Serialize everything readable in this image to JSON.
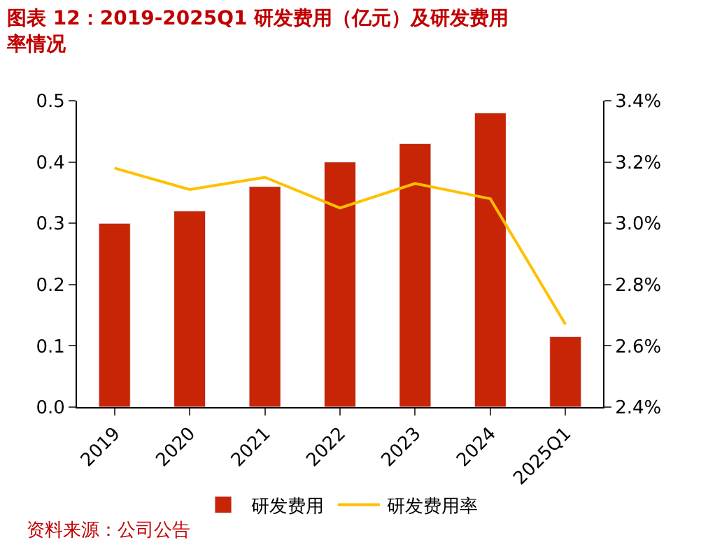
{
  "chart_data": {
    "type": "bar",
    "title": "图表 12：2019-2025Q1 研发费用（亿元）及研发费用率情况",
    "categories": [
      "2019",
      "2020",
      "2021",
      "2022",
      "2023",
      "2024",
      "2025Q1"
    ],
    "series": [
      {
        "name": "研发费用",
        "color": "#c82506",
        "values": [
          0.3,
          0.32,
          0.36,
          0.4,
          0.43,
          0.48,
          0.115
        ]
      },
      {
        "name": "研发费用率",
        "type": "line",
        "axis": "y2",
        "color": "#ffc000",
        "marker": "none",
        "values": [
          3.18,
          3.11,
          3.15,
          3.05,
          3.13,
          3.08,
          2.67
        ]
      }
    ],
    "ylim": [
      0,
      0.5
    ],
    "yticks": [
      {
        "value": 0,
        "label": "0.0"
      },
      0.1,
      0.2,
      0.3,
      0.4,
      0.5
    ],
    "y2lim": [
      2.4,
      3.4
    ],
    "y2ticks": [
      {
        "value": 2.4,
        "label": "2.4%"
      },
      {
        "value": 2.6,
        "label": "2.6%"
      },
      {
        "value": 2.8,
        "label": "2.8%"
      },
      {
        "value": 3.0,
        "label": "3.0%"
      },
      {
        "value": 3.2,
        "label": "3.2%"
      },
      {
        "value": 3.4,
        "label": "3.4%"
      }
    ],
    "legend": "bottom",
    "annotations": [
      "资料来源：公司公告"
    ]
  }
}
